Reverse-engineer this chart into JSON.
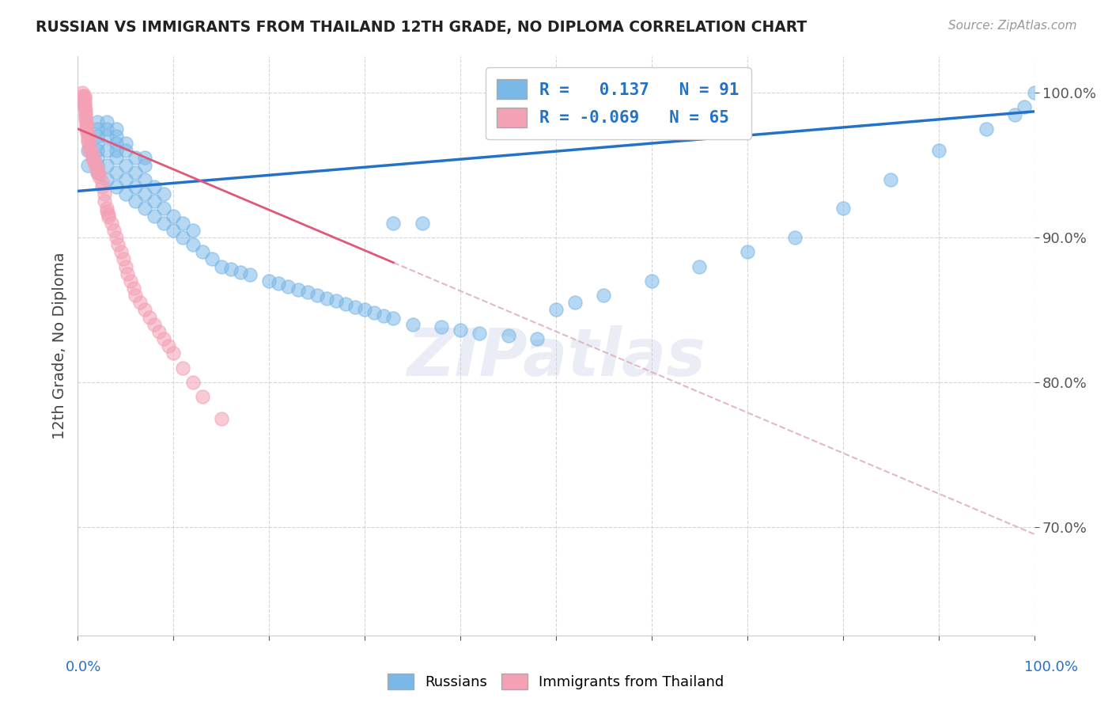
{
  "title": "RUSSIAN VS IMMIGRANTS FROM THAILAND 12TH GRADE, NO DIPLOMA CORRELATION CHART",
  "source": "Source: ZipAtlas.com",
  "ylabel": "12th Grade, No Diploma",
  "xlim": [
    0.0,
    1.0
  ],
  "ylim": [
    0.625,
    1.025
  ],
  "yticks": [
    0.7,
    0.8,
    0.9,
    1.0
  ],
  "ytick_labels": [
    "70.0%",
    "80.0%",
    "90.0%",
    "100.0%"
  ],
  "blue_color": "#7ab8e8",
  "pink_color": "#f4a0b5",
  "blue_line_color": "#2472c8",
  "pink_line_color": "#e05878",
  "dashed_line_color": "#e0b0c0",
  "watermark": "ZIPatlas",
  "background_color": "#ffffff",
  "R_blue": 0.137,
  "N_blue": 91,
  "R_pink": -0.069,
  "N_pink": 65,
  "blue_x": [
    0.01,
    0.01,
    0.02,
    0.02,
    0.02,
    0.02,
    0.02,
    0.02,
    0.02,
    0.02,
    0.03,
    0.03,
    0.03,
    0.03,
    0.03,
    0.03,
    0.04,
    0.04,
    0.04,
    0.04,
    0.04,
    0.04,
    0.04,
    0.05,
    0.05,
    0.05,
    0.05,
    0.05,
    0.06,
    0.06,
    0.06,
    0.06,
    0.07,
    0.07,
    0.07,
    0.07,
    0.07,
    0.08,
    0.08,
    0.08,
    0.09,
    0.09,
    0.09,
    0.1,
    0.1,
    0.11,
    0.11,
    0.12,
    0.12,
    0.13,
    0.14,
    0.15,
    0.16,
    0.17,
    0.18,
    0.2,
    0.21,
    0.22,
    0.23,
    0.24,
    0.25,
    0.26,
    0.27,
    0.28,
    0.29,
    0.3,
    0.31,
    0.32,
    0.33,
    0.35,
    0.38,
    0.4,
    0.42,
    0.45,
    0.48,
    0.5,
    0.52,
    0.55,
    0.6,
    0.65,
    0.7,
    0.75,
    0.8,
    0.85,
    0.9,
    0.95,
    0.98,
    0.99,
    1.0,
    0.33,
    0.36
  ],
  "blue_y": [
    0.95,
    0.96,
    0.945,
    0.955,
    0.965,
    0.97,
    0.975,
    0.98,
    0.96,
    0.95,
    0.94,
    0.95,
    0.96,
    0.97,
    0.975,
    0.98,
    0.935,
    0.945,
    0.955,
    0.965,
    0.97,
    0.975,
    0.96,
    0.93,
    0.94,
    0.95,
    0.96,
    0.965,
    0.925,
    0.935,
    0.945,
    0.955,
    0.92,
    0.93,
    0.94,
    0.95,
    0.955,
    0.915,
    0.925,
    0.935,
    0.91,
    0.92,
    0.93,
    0.905,
    0.915,
    0.9,
    0.91,
    0.895,
    0.905,
    0.89,
    0.885,
    0.88,
    0.878,
    0.876,
    0.874,
    0.87,
    0.868,
    0.866,
    0.864,
    0.862,
    0.86,
    0.858,
    0.856,
    0.854,
    0.852,
    0.85,
    0.848,
    0.846,
    0.844,
    0.84,
    0.838,
    0.836,
    0.834,
    0.832,
    0.83,
    0.85,
    0.855,
    0.86,
    0.87,
    0.88,
    0.89,
    0.9,
    0.92,
    0.94,
    0.96,
    0.975,
    0.985,
    0.99,
    1.0,
    0.91,
    0.91
  ],
  "pink_x": [
    0.005,
    0.005,
    0.005,
    0.005,
    0.005,
    0.007,
    0.007,
    0.007,
    0.007,
    0.007,
    0.008,
    0.008,
    0.008,
    0.008,
    0.009,
    0.009,
    0.009,
    0.009,
    0.01,
    0.01,
    0.01,
    0.01,
    0.012,
    0.012,
    0.012,
    0.015,
    0.015,
    0.015,
    0.018,
    0.018,
    0.02,
    0.02,
    0.022,
    0.022,
    0.025,
    0.025,
    0.028,
    0.028,
    0.03,
    0.03,
    0.032,
    0.032,
    0.035,
    0.038,
    0.04,
    0.042,
    0.045,
    0.048,
    0.05,
    0.052,
    0.055,
    0.058,
    0.06,
    0.065,
    0.07,
    0.075,
    0.08,
    0.085,
    0.09,
    0.095,
    0.1,
    0.11,
    0.12,
    0.13,
    0.15
  ],
  "pink_y": [
    1.0,
    0.998,
    0.996,
    0.994,
    0.992,
    0.998,
    0.996,
    0.994,
    0.992,
    0.99,
    0.988,
    0.986,
    0.984,
    0.982,
    0.98,
    0.978,
    0.976,
    0.974,
    0.972,
    0.97,
    0.968,
    0.966,
    0.964,
    0.962,
    0.96,
    0.958,
    0.956,
    0.954,
    0.952,
    0.95,
    0.948,
    0.946,
    0.944,
    0.942,
    0.938,
    0.935,
    0.93,
    0.925,
    0.92,
    0.918,
    0.916,
    0.914,
    0.91,
    0.905,
    0.9,
    0.895,
    0.89,
    0.885,
    0.88,
    0.875,
    0.87,
    0.865,
    0.86,
    0.855,
    0.85,
    0.845,
    0.84,
    0.835,
    0.83,
    0.825,
    0.82,
    0.81,
    0.8,
    0.79,
    0.775
  ]
}
